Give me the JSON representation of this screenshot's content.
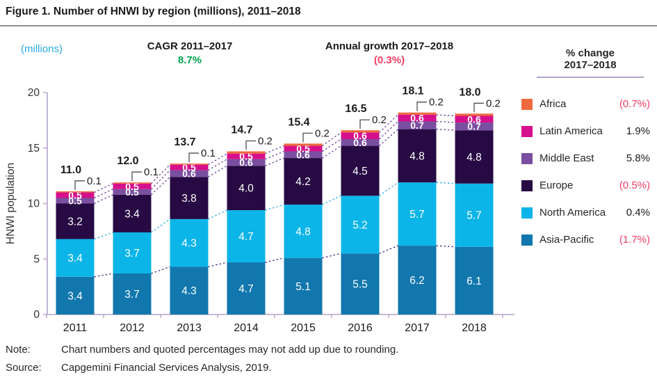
{
  "title": "Figure 1. Number of HNWI by region (millions), 2011–2018",
  "header": {
    "millions_label": "(millions)",
    "cagr": {
      "label": "CAGR 2011–2017",
      "value": "8.7%"
    },
    "annual_growth": {
      "label": "Annual growth 2017–2018",
      "value": "(0.3%)"
    }
  },
  "legend": {
    "title_line1": "% change",
    "title_line2": "2017–2018",
    "items": [
      {
        "label": "Africa",
        "change": "(0.7%)",
        "negative": true,
        "color": "#f0693f"
      },
      {
        "label": "Latin America",
        "change": "1.9%",
        "negative": false,
        "color": "#d60f8c"
      },
      {
        "label": "Middle East",
        "change": "5.8%",
        "negative": false,
        "color": "#7a4fa0"
      },
      {
        "label": "Europe",
        "change": "(0.5%)",
        "negative": true,
        "color": "#270a43"
      },
      {
        "label": "North America",
        "change": "0.4%",
        "negative": false,
        "color": "#0cb5e8"
      },
      {
        "label": "Asia-Pacific",
        "change": "(1.7%)",
        "negative": true,
        "color": "#1177ad"
      }
    ]
  },
  "chart_data": {
    "type": "bar",
    "stacked": true,
    "title": "Number of HNWI by region (millions), 2011–2018",
    "xlabel": "",
    "ylabel": "HNWI population",
    "ylim": [
      0,
      20
    ],
    "yticks": [
      0,
      5,
      10,
      15,
      20
    ],
    "grid": false,
    "legend_position": "right",
    "categories": [
      "2011",
      "2012",
      "2013",
      "2014",
      "2015",
      "2016",
      "2017",
      "2018"
    ],
    "series": [
      {
        "name": "Asia-Pacific",
        "color": "#1177ad",
        "values": [
          3.4,
          3.7,
          4.3,
          4.7,
          5.1,
          5.5,
          6.2,
          6.1
        ]
      },
      {
        "name": "North America",
        "color": "#0cb5e8",
        "values": [
          3.4,
          3.7,
          4.3,
          4.7,
          4.8,
          5.2,
          5.7,
          5.7
        ]
      },
      {
        "name": "Europe",
        "color": "#270a43",
        "values": [
          3.2,
          3.4,
          3.8,
          4.0,
          4.2,
          4.5,
          4.8,
          4.8
        ]
      },
      {
        "name": "Middle East",
        "color": "#7a4fa0",
        "values": [
          0.5,
          0.5,
          0.6,
          0.6,
          0.6,
          0.6,
          0.7,
          0.7
        ]
      },
      {
        "name": "Latin America",
        "color": "#d60f8c",
        "values": [
          0.5,
          0.5,
          0.5,
          0.5,
          0.5,
          0.6,
          0.6,
          0.6
        ]
      },
      {
        "name": "Africa",
        "color": "#f0693f",
        "values": [
          0.1,
          0.1,
          0.1,
          0.2,
          0.2,
          0.2,
          0.2,
          0.2
        ]
      }
    ],
    "totals": [
      "11.0",
      "12.0",
      "13.7",
      "14.7",
      "15.4",
      "16.5",
      "18.1",
      "18.0"
    ],
    "callout_series": "Africa",
    "connector_colors": {
      "asia_pacific_top": "#472a7d",
      "north_america_top": "#2aa9de",
      "upper_boundaries": "#6b3fa0"
    },
    "axis_color": "#b4a3cb"
  },
  "note": {
    "label": "Note:",
    "text": "Chart numbers and quoted percentages may not add up due to rounding."
  },
  "source": {
    "label": "Source:",
    "text": "Capgemini Financial Services Analysis, 2019."
  }
}
